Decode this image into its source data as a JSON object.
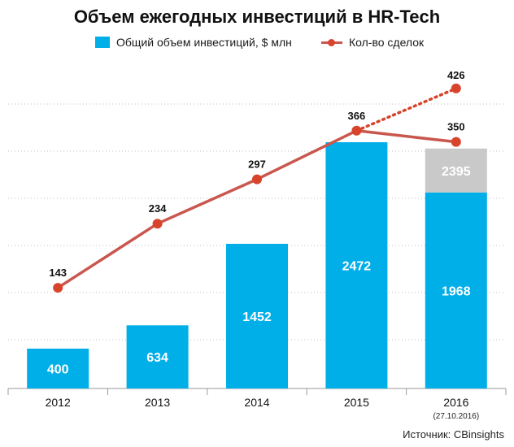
{
  "chart_data": {
    "type": "bar",
    "title": "Объем ежегодных инвестиций в HR-Tech",
    "categories": [
      "2012",
      "2013",
      "2014",
      "2015",
      "2016"
    ],
    "category_notes": [
      "",
      "",
      "",
      "",
      "(27.10.2016)"
    ],
    "series": [
      {
        "name": "Общий объем инвестиций, $ млн",
        "type": "bar",
        "values": [
          400,
          634,
          1452,
          2472,
          1968
        ],
        "color": "#00aee8"
      },
      {
        "name": "",
        "type": "bar-stack-projection",
        "values": [
          null,
          null,
          null,
          null,
          2395
        ],
        "color": "#c9c9c9"
      },
      {
        "name": "Кол-во сделок",
        "type": "line",
        "values": [
          143,
          234,
          297,
          366,
          350
        ],
        "color": "#c9574e",
        "marker_color": "#d8442b"
      },
      {
        "name": "",
        "type": "line-projection-dotted",
        "values": [
          null,
          null,
          null,
          366,
          426
        ],
        "color": "#d8442b"
      }
    ],
    "bar_ylim": [
      0,
      2700
    ],
    "line_ylim": [
      0,
      450
    ],
    "grid": "dotted horizontal",
    "legend_position": "top"
  },
  "source_text": "Источник: CBinsights"
}
